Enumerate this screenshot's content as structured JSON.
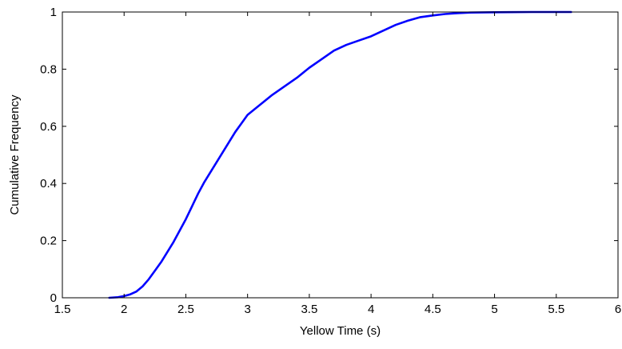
{
  "chart_data": {
    "type": "line",
    "title": "",
    "xlabel": "Yellow Time (s)",
    "ylabel": "Cumulative Frequency",
    "xlim": [
      1.5,
      6
    ],
    "ylim": [
      0,
      1
    ],
    "xticks": [
      1.5,
      2,
      2.5,
      3,
      3.5,
      4,
      4.5,
      5,
      5.5,
      6
    ],
    "yticks": [
      0,
      0.2,
      0.4,
      0.6,
      0.8,
      1
    ],
    "xtick_labels": [
      "1.5",
      "2",
      "2.5",
      "3",
      "3.5",
      "4",
      "4.5",
      "5",
      "5.5",
      "6"
    ],
    "ytick_labels": [
      "0",
      "0.2",
      "0.4",
      "0.6",
      "0.8",
      "1"
    ],
    "grid": false,
    "legend": false,
    "series": [
      {
        "color": "#0000ff",
        "x": [
          1.88,
          1.95,
          2.0,
          2.05,
          2.1,
          2.15,
          2.2,
          2.25,
          2.3,
          2.35,
          2.4,
          2.45,
          2.5,
          2.55,
          2.6,
          2.65,
          2.7,
          2.75,
          2.8,
          2.85,
          2.9,
          2.95,
          3.0,
          3.1,
          3.2,
          3.3,
          3.4,
          3.5,
          3.6,
          3.7,
          3.8,
          3.9,
          4.0,
          4.1,
          4.2,
          4.3,
          4.4,
          4.5,
          4.6,
          4.7,
          4.8,
          5.0,
          5.3,
          5.62
        ],
        "y": [
          0.0,
          0.002,
          0.006,
          0.012,
          0.022,
          0.04,
          0.065,
          0.095,
          0.125,
          0.16,
          0.195,
          0.235,
          0.275,
          0.32,
          0.365,
          0.405,
          0.44,
          0.475,
          0.51,
          0.545,
          0.58,
          0.61,
          0.64,
          0.675,
          0.71,
          0.74,
          0.77,
          0.805,
          0.835,
          0.865,
          0.885,
          0.9,
          0.915,
          0.935,
          0.955,
          0.97,
          0.982,
          0.988,
          0.993,
          0.996,
          0.998,
          0.999,
          1.0,
          1.0
        ]
      }
    ]
  }
}
